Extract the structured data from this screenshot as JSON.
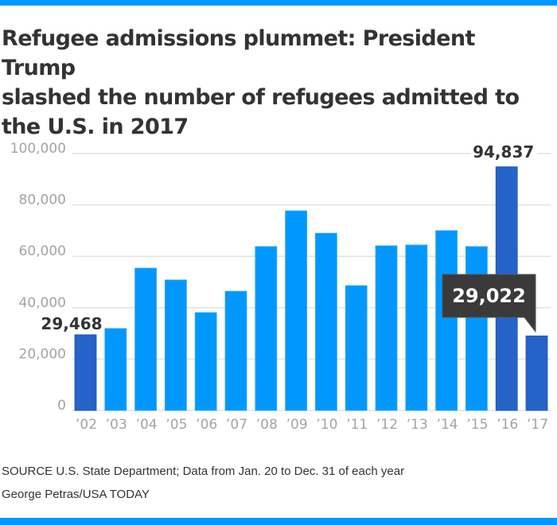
{
  "colors": {
    "accent_bar": "#0098ff",
    "bar_default": "#0098ff",
    "bar_highlight": "#2563c9",
    "callout_bg": "#3a3a3a",
    "gridline": "#e2e2e2"
  },
  "title_lines": [
    "Refugee admissions plummet: President Trump",
    "slashed the number of refugees admitted to",
    "the U.S. in 2017"
  ],
  "footer": {
    "source": "SOURCE U.S. State Department; Data from Jan. 20 to Dec. 31 of each year",
    "credit": "George Petras/USA TODAY"
  },
  "chart_data": {
    "type": "bar",
    "title": "Refugee admissions plummet: President Trump slashed the number of refugees admitted to the U.S. in 2017",
    "xlabel": "",
    "ylabel": "",
    "ylim": [
      0,
      100000
    ],
    "yticks": [
      0,
      20000,
      40000,
      60000,
      80000,
      100000
    ],
    "ytick_labels": [
      "0",
      "20,000",
      "40,000",
      "60,000",
      "80,000",
      "100,000"
    ],
    "grid": true,
    "categories": [
      "'02",
      "'03",
      "'04",
      "'05",
      "'06",
      "'07",
      "'08",
      "'09",
      "'10",
      "'11",
      "'12",
      "'13",
      "'14",
      "'15",
      "'16",
      "'17"
    ],
    "values": [
      29468,
      31900,
      55400,
      50800,
      38100,
      46400,
      63800,
      77700,
      69000,
      48600,
      64100,
      64400,
      70000,
      63800,
      94837,
      29022
    ],
    "highlighted": [
      "'02",
      "'16",
      "'17"
    ],
    "annotations": [
      {
        "category": "'02",
        "text": "29,468",
        "style": "label"
      },
      {
        "category": "'16",
        "text": "94,837",
        "style": "label"
      },
      {
        "category": "'17",
        "text": "29,022",
        "style": "callout"
      }
    ]
  }
}
